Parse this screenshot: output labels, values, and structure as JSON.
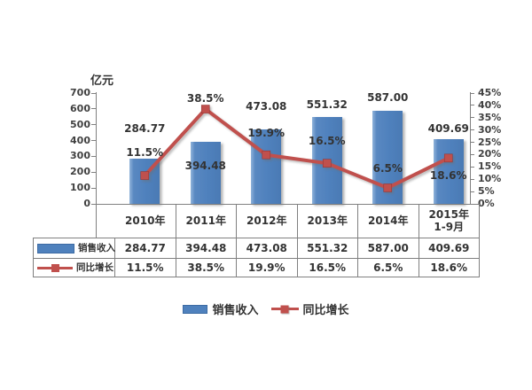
{
  "unit_label": "亿元",
  "chart_data": {
    "type": "bar+line",
    "categories": [
      "2010年",
      "2011年",
      "2012年",
      "2013年",
      "2014年",
      "2015年\n1-9月"
    ],
    "series": [
      {
        "name": "销售收入",
        "type": "bar",
        "color": "#4f81bd",
        "values": [
          284.77,
          394.48,
          473.08,
          551.32,
          587.0,
          409.69
        ],
        "labels": [
          "284.77",
          "394.48",
          "473.08",
          "551.32",
          "587.00",
          "409.69"
        ]
      },
      {
        "name": "同比增长",
        "type": "line",
        "color": "#c0504d",
        "values": [
          11.5,
          38.5,
          19.9,
          16.5,
          6.5,
          18.6
        ],
        "labels": [
          "11.5%",
          "38.5%",
          "19.9%",
          "16.5%",
          "6.5%",
          "18.6%"
        ]
      }
    ],
    "left_axis": {
      "label": "亿元",
      "min": 0,
      "max": 700,
      "step": 100,
      "ticks": [
        "700",
        "600",
        "500",
        "400",
        "300",
        "200",
        "100",
        "0"
      ]
    },
    "right_axis": {
      "min": 0,
      "max": 45,
      "step": 5,
      "ticks": [
        "45%",
        "40%",
        "35%",
        "30%",
        "25%",
        "20%",
        "15%",
        "10%",
        "5%",
        "0%"
      ]
    },
    "grid": false,
    "legend_position": "bottom",
    "data_table": true
  },
  "legend": {
    "items": [
      {
        "label": "销售收入",
        "swatch": "bar"
      },
      {
        "label": "同比增长",
        "swatch": "line"
      }
    ]
  },
  "colors": {
    "bar": "#4f81bd",
    "line": "#c0504d",
    "axis": "#808080",
    "text": "#3f3f3f"
  }
}
